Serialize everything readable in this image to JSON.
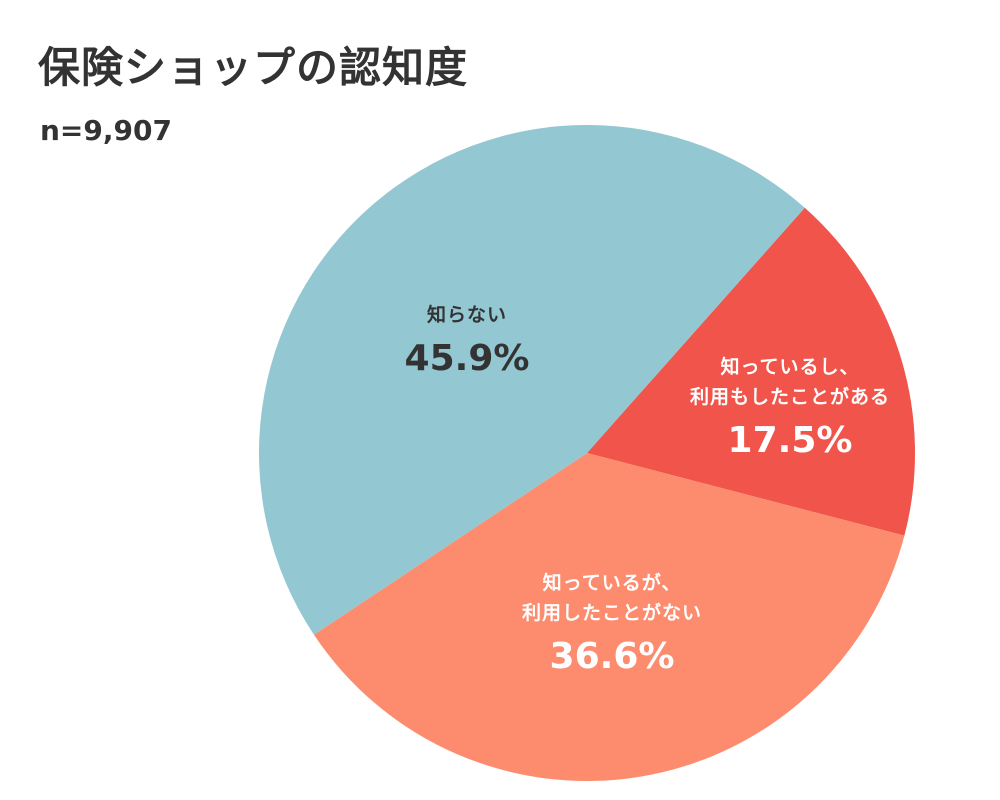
{
  "chart_data": {
    "type": "pie",
    "title": "保険ショップの認知度",
    "subtitle": "n=9,907",
    "start_angle_deg": 41.6,
    "direction": "clockwise",
    "slices": [
      {
        "label_lines": [
          "知っているし、",
          "利用もしたことがある"
        ],
        "value": 17.5,
        "display": "17.5%",
        "color": "#F0544A"
      },
      {
        "label_lines": [
          "知っているが、",
          "利用したことがない"
        ],
        "value": 36.6,
        "display": "36.6%",
        "color": "#FD8C6E"
      },
      {
        "label_lines": [
          "知らない"
        ],
        "value": 45.9,
        "display": "45.9%",
        "color": "#93C8D3"
      }
    ]
  }
}
